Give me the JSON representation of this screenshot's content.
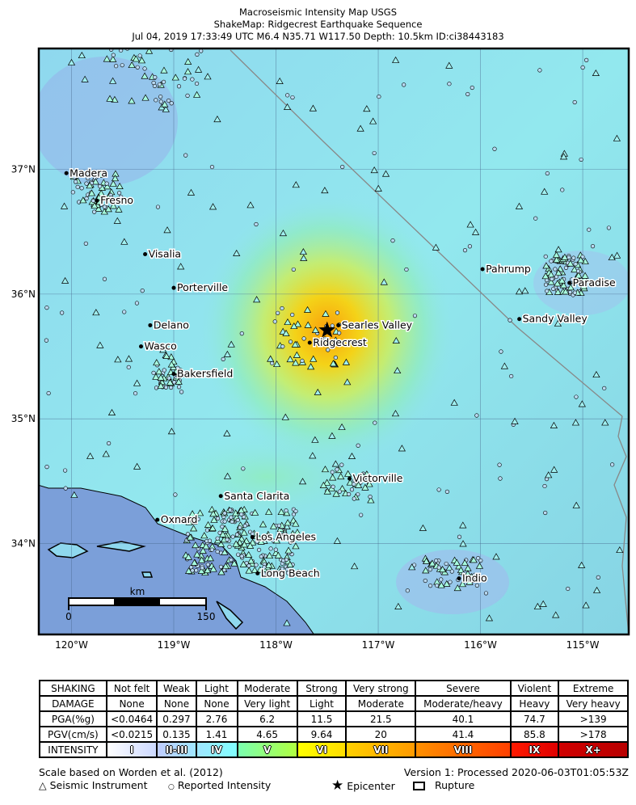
{
  "title": {
    "line1": "Macroseismic Intensity Map USGS",
    "line2": "ShakeMap: Ridgecrest Earthquake Sequence",
    "line3": "Jul 04, 2019 17:33:49 UTC M6.4 N35.71 W117.50 Depth: 10.5km ID:ci38443183"
  },
  "map": {
    "extent": {
      "lon": [
        -120.32,
        -114.55
      ],
      "lat": [
        33.27,
        37.97
      ]
    },
    "lon_ticks": [
      {
        "v": -120,
        "label": "120°W"
      },
      {
        "v": -119,
        "label": "119°W"
      },
      {
        "v": -118,
        "label": "118°W"
      },
      {
        "v": -117,
        "label": "117°W"
      },
      {
        "v": -116,
        "label": "116°W"
      },
      {
        "v": -115,
        "label": "115°W"
      }
    ],
    "lat_ticks": [
      {
        "v": 37,
        "label": "37°N"
      },
      {
        "v": 36,
        "label": "36°N"
      },
      {
        "v": 35,
        "label": "35°N"
      },
      {
        "v": 34,
        "label": "34°N"
      }
    ],
    "epicenter": {
      "lon": -117.5,
      "lat": 35.71
    },
    "cities": [
      {
        "name": "Madera",
        "lon": -120.05,
        "lat": 36.97
      },
      {
        "name": "Fresno",
        "lon": -119.75,
        "lat": 36.75
      },
      {
        "name": "Visalia",
        "lon": -119.28,
        "lat": 36.32
      },
      {
        "name": "Porterville",
        "lon": -119.0,
        "lat": 36.05
      },
      {
        "name": "Delano",
        "lon": -119.23,
        "lat": 35.75
      },
      {
        "name": "Wasco",
        "lon": -119.32,
        "lat": 35.58
      },
      {
        "name": "Bakersfield",
        "lon": -119.0,
        "lat": 35.36
      },
      {
        "name": "Ridgecrest",
        "lon": -117.67,
        "lat": 35.61
      },
      {
        "name": "Searles Valley",
        "lon": -117.39,
        "lat": 35.75
      },
      {
        "name": "Pahrump",
        "lon": -115.98,
        "lat": 36.2
      },
      {
        "name": "Paradise",
        "lon": -115.13,
        "lat": 36.09
      },
      {
        "name": "Sandy Valley",
        "lon": -115.62,
        "lat": 35.8
      },
      {
        "name": "Victorville",
        "lon": -117.28,
        "lat": 34.52
      },
      {
        "name": "Santa Clarita",
        "lon": -118.54,
        "lat": 34.38
      },
      {
        "name": "Oxnard",
        "lon": -119.16,
        "lat": 34.19
      },
      {
        "name": "Los Angeles",
        "lon": -118.23,
        "lat": 34.05
      },
      {
        "name": "Long Beach",
        "lon": -118.18,
        "lat": 33.76
      },
      {
        "name": "Indio",
        "lon": -116.21,
        "lat": 33.72
      }
    ],
    "scalebar": {
      "unit": "km",
      "start": "0",
      "end": "150"
    },
    "colors": {
      "ocean": "#7b9fd9",
      "land_base": "#8fe6ee",
      "epicenter_shaking": "#ffb000"
    }
  },
  "legend": {
    "rows": [
      {
        "label": "SHAKING",
        "cells": [
          "Not felt",
          "Weak",
          "Light",
          "Moderate",
          "Strong",
          "Very strong",
          "Severe",
          "Violent",
          "Extreme"
        ]
      },
      {
        "label": "DAMAGE",
        "cells": [
          "None",
          "None",
          "None",
          "Very light",
          "Light",
          "Moderate",
          "Moderate/heavy",
          "Heavy",
          "Very heavy"
        ]
      },
      {
        "label": "PGA(%g)",
        "cells": [
          "<0.0464",
          "0.297",
          "2.76",
          "6.2",
          "11.5",
          "21.5",
          "40.1",
          "74.7",
          ">139"
        ]
      },
      {
        "label": "PGV(cm/s)",
        "cells": [
          "<0.0215",
          "0.135",
          "1.41",
          "4.65",
          "9.64",
          "20",
          "41.4",
          "85.8",
          ">178"
        ]
      }
    ],
    "intensity": {
      "label": "INTENSITY",
      "cells": [
        "I",
        "II-III",
        "IV",
        "V",
        "VI",
        "VII",
        "VIII",
        "IX",
        "X+"
      ],
      "colors": [
        [
          "#ffffff",
          "#ccd8ff"
        ],
        [
          "#bfccff",
          "#a0e6ff"
        ],
        [
          "#a0e6ff",
          "#80ffff"
        ],
        [
          "#7affb0",
          "#b0ff40"
        ],
        [
          "#ffff00",
          "#ffdd00"
        ],
        [
          "#ffd000",
          "#ff9a00"
        ],
        [
          "#ff9000",
          "#ff4000"
        ],
        [
          "#ff1a00",
          "#e00000"
        ],
        [
          "#d00000",
          "#b80000"
        ]
      ]
    },
    "scale_note": "Scale based on Worden et al. (2012)",
    "version": "Version 1: Processed 2020-06-03T01:05:53Z",
    "symbols": {
      "instrument": "Seismic Instrument",
      "reported": "Reported Intensity",
      "epicenter": "Epicenter",
      "rupture": "Rupture"
    }
  }
}
